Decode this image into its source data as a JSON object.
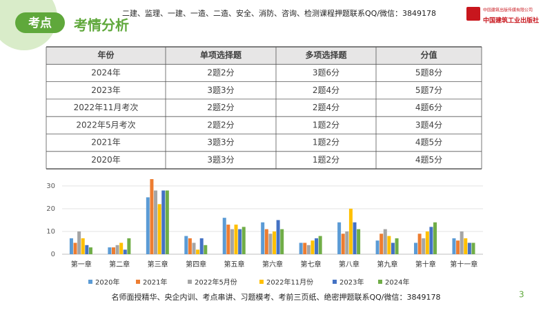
{
  "header": {
    "badge": "考点",
    "title": "考情分析",
    "notice": "二建、监理、一建、一造、二造、安全、消防、咨询、检测课程押题联系QQ/微信：3849178",
    "logo_top": "中国建筑出版传媒有限公司",
    "logo_bottom": "中国建筑工业出版社"
  },
  "table": {
    "columns": [
      "年份",
      "单项选择题",
      "多项选择题",
      "分值"
    ],
    "rows": [
      [
        "2024年",
        "2题2分",
        "3题6分",
        "5题8分"
      ],
      [
        "2023年",
        "3题3分",
        "2题4分",
        "5题7分"
      ],
      [
        "2022年11月考次",
        "2题2分",
        "2题4分",
        "4题6分"
      ],
      [
        "2022年5月考次",
        "2题2分",
        "1题2分",
        "3题4分"
      ],
      [
        "2021年",
        "3题3分",
        "1题2分",
        "4题5分"
      ],
      [
        "2020年",
        "3题3分",
        "1题2分",
        "4题5分"
      ]
    ]
  },
  "chart_data": {
    "type": "bar",
    "categories": [
      "第一章",
      "第二章",
      "第三章",
      "第四章",
      "第五章",
      "第六章",
      "第七章",
      "第八章",
      "第九章",
      "第十章",
      "第十一章"
    ],
    "series": [
      {
        "name": "2020年",
        "color": "#5b9bd5",
        "values": [
          7,
          3,
          25,
          8,
          16,
          14,
          5,
          14,
          6,
          5,
          7
        ]
      },
      {
        "name": "2021年",
        "color": "#ed7d31",
        "values": [
          5,
          3,
          33,
          7,
          13,
          11,
          5,
          9,
          9,
          9,
          6
        ]
      },
      {
        "name": "2022年5月份",
        "color": "#a5a5a5",
        "values": [
          10,
          4,
          28,
          5,
          11,
          9,
          4,
          10,
          11,
          7,
          10
        ]
      },
      {
        "name": "2022年11月份",
        "color": "#ffc000",
        "values": [
          7,
          5,
          22,
          2,
          13,
          10,
          6,
          20,
          8,
          10,
          7
        ]
      },
      {
        "name": "2023年",
        "color": "#4472c4",
        "values": [
          4,
          2,
          28,
          7,
          11,
          15,
          7,
          14,
          5,
          12,
          5
        ]
      },
      {
        "name": "2024年",
        "color": "#70ad47",
        "values": [
          3,
          7,
          28,
          4,
          12,
          11,
          8,
          11,
          7,
          14,
          5
        ]
      }
    ],
    "ylim": [
      0,
      33
    ],
    "yticks": [
      0,
      10,
      20,
      30
    ],
    "grid": true,
    "legend": "bottom"
  },
  "footer": {
    "notice": "名师面授精华、央企内训、考点串讲、习题模考、考前三页纸、绝密押题联系QQ/微信：3849178",
    "page": "3"
  }
}
